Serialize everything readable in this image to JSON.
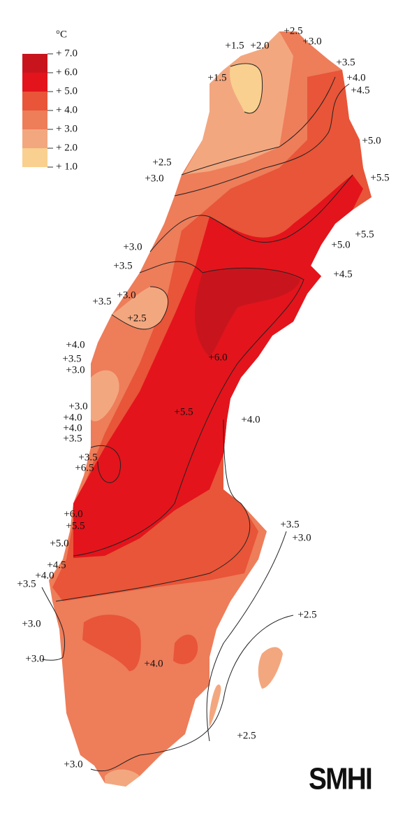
{
  "legend": {
    "unit": "°C",
    "labels": [
      "+ 7.0",
      "+ 6.0",
      "+ 5.0",
      "+ 4.0",
      "+ 3.0",
      "+ 2.0",
      "+ 1.0"
    ],
    "colors": [
      "#c8151d",
      "#e3141c",
      "#e85538",
      "#ee7d5a",
      "#f3a77f",
      "#f9d08f"
    ]
  },
  "contour_labels": [
    "+2.5",
    "+3.0",
    "+1.5",
    "+2.0",
    "+3.5",
    "+1.5",
    "+4.0",
    "+4.5",
    "+5.0",
    "+2.5",
    "+3.0",
    "+5.5",
    "+5.5",
    "+5.0",
    "+3.0",
    "+3.5",
    "+4.5",
    "+3.0",
    "+3.5",
    "+2.5",
    "+4.0",
    "+6.0",
    "+3.5",
    "+3.0",
    "+3.0",
    "+4.0",
    "+4.0",
    "+3.5",
    "+5.5",
    "+4.0",
    "+3.5",
    "+6.5",
    "+6.0",
    "+5.5",
    "+3.5",
    "+5.0",
    "+3.0",
    "+4.5",
    "+4.0",
    "+3.5",
    "+2.5",
    "+3.0",
    "+3.0",
    "+4.0",
    "+2.5",
    "+3.0"
  ],
  "logo": "SMHI"
}
